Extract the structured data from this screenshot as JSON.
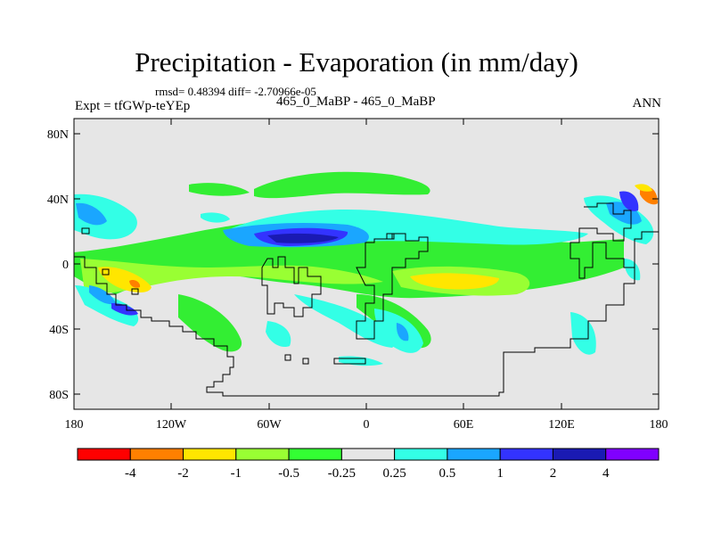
{
  "title": "Precipitation - Evaporation (in mm/day)",
  "stats": "rmsd= 0.48394 diff= -2.70966e-05",
  "experiment": "Expt = tfGWp-teYEp",
  "comparison": "465_0_MaBP - 465_0_MaBP",
  "season": "ANN",
  "map": {
    "y_ticks": [
      "80N",
      "40N",
      "0",
      "40S",
      "80S"
    ],
    "x_ticks": [
      "180",
      "120W",
      "60W",
      "0",
      "60E",
      "120E",
      "180"
    ],
    "land_color": "#e6e6e6"
  },
  "colorbar": {
    "colors": [
      "#ff0000",
      "#ff8000",
      "#ffe600",
      "#99ff33",
      "#33ff33",
      "#e6e6e6",
      "#33ffe6",
      "#1aa6ff",
      "#3333ff",
      "#1a1ab3",
      "#8000ff"
    ],
    "labels": [
      "-4",
      "-2",
      "-1",
      "-0.5",
      "-0.25",
      "0.25",
      "0.5",
      "1",
      "2",
      "4"
    ]
  }
}
